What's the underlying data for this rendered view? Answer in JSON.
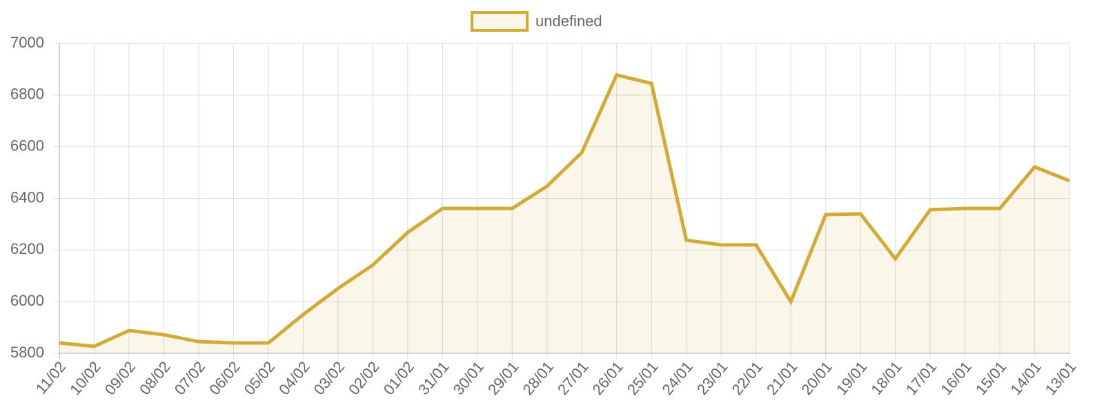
{
  "chart_data": {
    "type": "line",
    "categories": [
      "11/02",
      "10/02",
      "09/02",
      "08/02",
      "07/02",
      "06/02",
      "05/02",
      "04/02",
      "03/02",
      "02/02",
      "01/02",
      "31/01",
      "30/01",
      "29/01",
      "28/01",
      "27/01",
      "26/01",
      "25/01",
      "24/01",
      "23/01",
      "22/01",
      "21/01",
      "20/01",
      "19/01",
      "18/01",
      "17/01",
      "16/01",
      "15/01",
      "14/01",
      "13/01"
    ],
    "series": [
      {
        "name": "undefined",
        "color": "#d4aa34",
        "fill": "rgba(212,170,52,0.1)",
        "values": [
          5840,
          5827,
          5888,
          5872,
          5845,
          5840,
          5840,
          5950,
          6051,
          6142,
          6268,
          6361,
          6361,
          6361,
          6447,
          6578,
          6878,
          6845,
          6238,
          6220,
          6220,
          6000,
          6337,
          6340,
          6166,
          6356,
          6361,
          6361,
          6522,
          6468
        ]
      }
    ],
    "ylim": [
      5800,
      7000
    ],
    "yticks": [
      5800,
      6000,
      6200,
      6400,
      6600,
      6800,
      7000
    ],
    "grid": true,
    "legend": "top"
  }
}
